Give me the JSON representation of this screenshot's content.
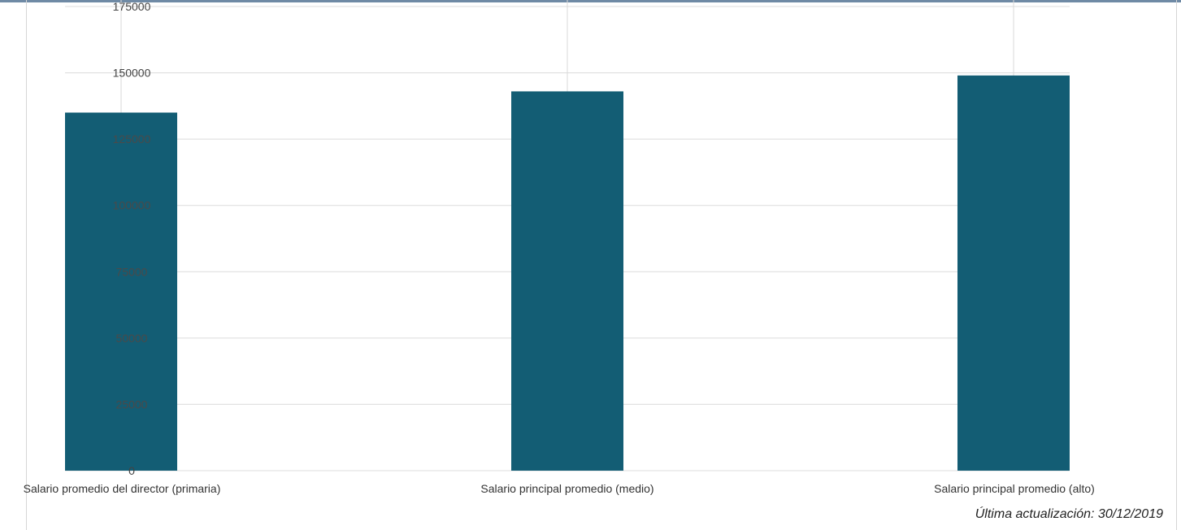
{
  "chart_data": {
    "type": "bar",
    "categories": [
      "Salario promedio del director (primaria)",
      "Salario principal promedio (medio)",
      "Salario principal promedio (alto)"
    ],
    "values": [
      135000,
      143000,
      149000
    ],
    "title": "",
    "xlabel": "",
    "ylabel": "",
    "ylim": [
      0,
      175000
    ],
    "yticks": [
      "0",
      "25000",
      "50000",
      "75000",
      "100000",
      "125000",
      "150000",
      "175000"
    ],
    "grid": true,
    "bar_color": "#135d74"
  },
  "footer": {
    "last_updated": "Última actualización: 30/12/2019"
  }
}
